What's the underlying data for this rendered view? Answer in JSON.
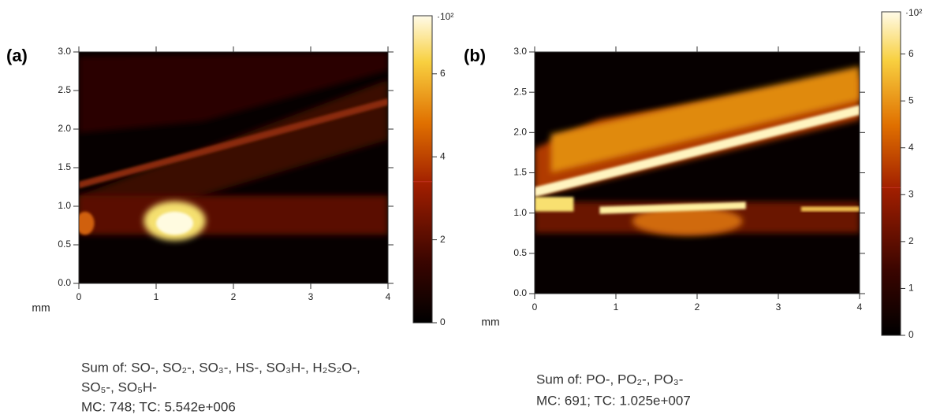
{
  "chart_data": [
    {
      "type": "heatmap",
      "panel_label": "(a)",
      "x_unit": "mm",
      "xlim": [
        0,
        4
      ],
      "xticks": [
        0,
        1,
        2,
        3,
        4
      ],
      "ylim": [
        0,
        3
      ],
      "yticks": [
        {
          "value": 0,
          "label": "0.0"
        },
        0.5,
        {
          "value": 1,
          "label": "1.0"
        },
        1.5,
        {
          "value": 2,
          "label": "2.0"
        },
        2.5,
        {
          "value": 3,
          "label": "3.0"
        }
      ],
      "colorbar": {
        "lim": [
          0,
          7.4
        ],
        "ticks": [
          0,
          2,
          4,
          6
        ],
        "exponent_label": "·10²",
        "marker": 3.4
      },
      "caption": [
        "Sum of: SO-, SO₂-, SO₃-, HS-, SO₃H-, H₂S₂O-,",
        "SO₅-, SO₅H-",
        "MC:   748; TC: 5.542e+006"
      ]
    },
    {
      "type": "heatmap",
      "panel_label": "(b)",
      "x_unit": "mm",
      "xlim": [
        0,
        4
      ],
      "xticks": [
        0,
        1,
        2,
        3,
        4
      ],
      "ylim": [
        0,
        3
      ],
      "yticks": [
        {
          "value": 0,
          "label": "0.0"
        },
        0.5,
        {
          "value": 1,
          "label": "1.0"
        },
        1.5,
        {
          "value": 2,
          "label": "2.0"
        },
        2.5,
        {
          "value": 3,
          "label": "3.0"
        }
      ],
      "colorbar": {
        "lim": [
          0,
          6.9
        ],
        "ticks": [
          0,
          1,
          2,
          3,
          4,
          5,
          6
        ],
        "exponent_label": "·10²",
        "marker": 3.15
      },
      "caption": [
        "Sum of: PO-, PO₂-, PO₃-",
        "MC:   691; TC: 1.025e+007"
      ]
    }
  ]
}
